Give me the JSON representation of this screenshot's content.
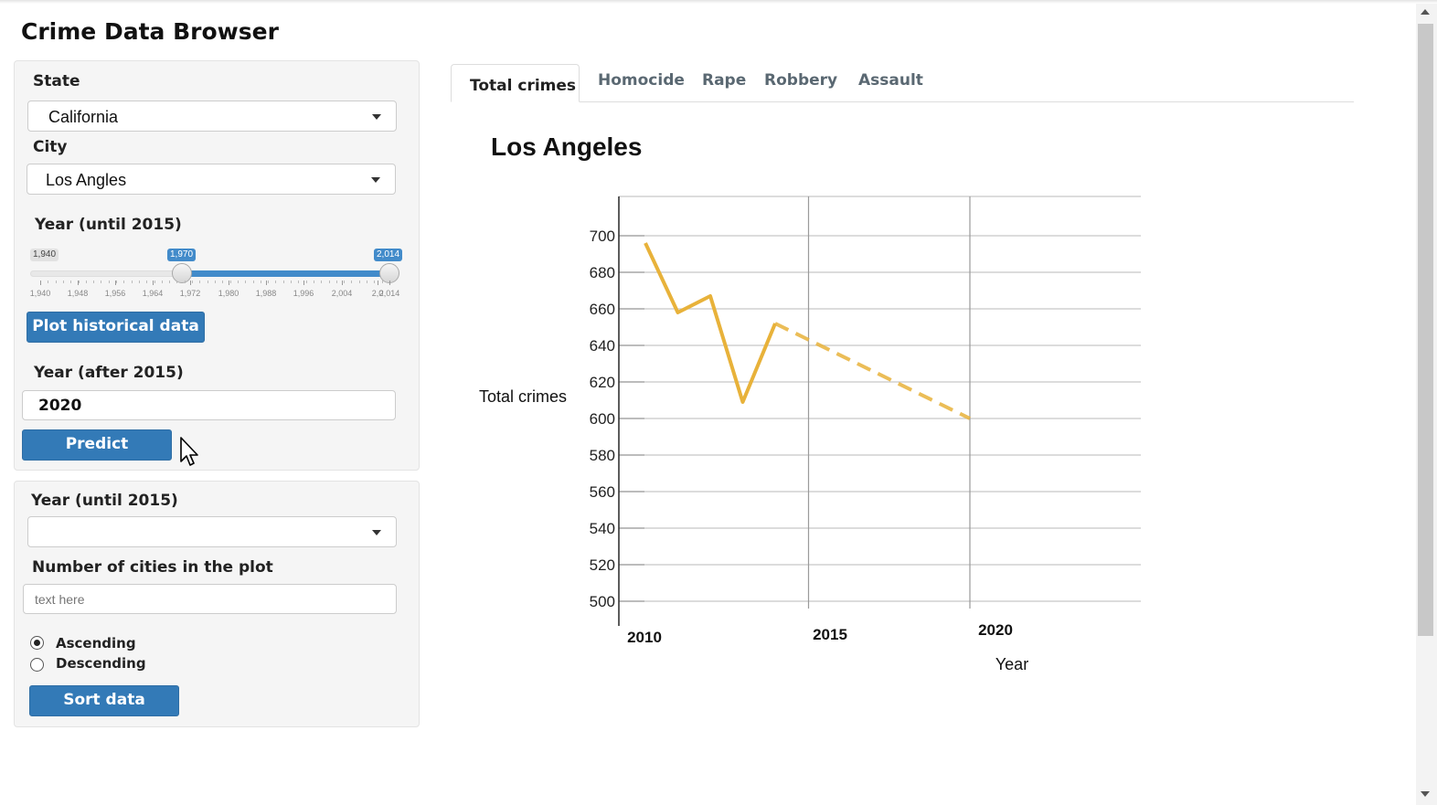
{
  "app": {
    "title": "Crime Data Browser"
  },
  "panel1": {
    "state_label": "State",
    "state_value": "California",
    "city_label": "City",
    "city_value": "Los Angles",
    "year_until_label": "Year (until 2015)",
    "slider": {
      "min_label": "1,940",
      "from_label": "1,970",
      "to_label": "2,014",
      "min": 1940,
      "max": 2014,
      "from": 1970,
      "to": 2014,
      "tick_labels": [
        "1,940",
        "1,948",
        "1,956",
        "1,964",
        "1,972",
        "1,980",
        "1,988",
        "1,996",
        "2,004",
        "2,0",
        "2,014"
      ]
    },
    "plot_button": "Plot historical data",
    "year_after_label": "Year (after 2015)",
    "year_after_value": "2020",
    "predict_button": "Predict"
  },
  "panel2": {
    "year_until_label": "Year (until 2015)",
    "year_select_value": "",
    "num_cities_label": "Number of cities in the plot",
    "num_cities_placeholder": "text here",
    "radio_ascending": "Ascending",
    "radio_descending": "Descending",
    "selected_order": "ascending",
    "sort_button": "Sort data"
  },
  "tabs": [
    {
      "label": "Total crimes",
      "active": true
    },
    {
      "label": "Homocide",
      "active": false
    },
    {
      "label": "Rape",
      "active": false
    },
    {
      "label": "Robbery",
      "active": false
    },
    {
      "label": "Assault",
      "active": false
    }
  ],
  "colors": {
    "accent": "#337ab7",
    "line": "#e8b23a",
    "grid": "#c8c8c8"
  },
  "chart_data": {
    "type": "line",
    "title": "Los Angeles",
    "xlabel": "Year",
    "ylabel": "Total crimes",
    "ylim": [
      500,
      700
    ],
    "yticks": [
      500,
      520,
      540,
      560,
      580,
      600,
      620,
      640,
      660,
      680,
      700
    ],
    "xticks": [
      2010,
      2015,
      2020
    ],
    "series": [
      {
        "style": "solid",
        "x": [
          2010,
          2011,
          2012,
          2013,
          2014
        ],
        "y": [
          696,
          658,
          667,
          609,
          652
        ]
      },
      {
        "style": "dashed",
        "x": [
          2014,
          2020
        ],
        "y": [
          652,
          600
        ]
      }
    ],
    "grid": true,
    "legend": false
  }
}
